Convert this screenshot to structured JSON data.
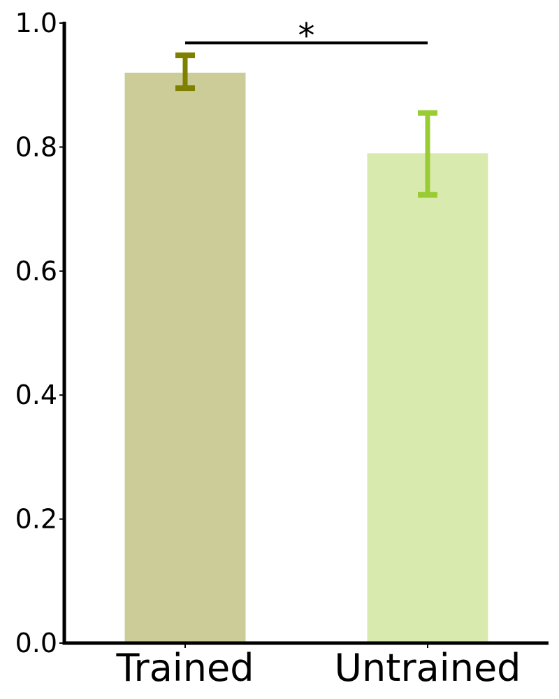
{
  "chart_data": {
    "type": "bar",
    "categories": [
      "Trained",
      "Untrained"
    ],
    "values": [
      0.92,
      0.79
    ],
    "error": [
      [
        0.895,
        0.948
      ],
      [
        0.723,
        0.855
      ]
    ],
    "colors": [
      "#cccc99",
      "#d8eaad"
    ],
    "error_colors": [
      "#808000",
      "#99cc33"
    ],
    "title": "",
    "xlabel": "",
    "ylabel": "",
    "ylim": [
      0,
      1.0
    ],
    "yticks": [
      "0.0",
      "0.2",
      "0.4",
      "0.6",
      "0.8",
      "1.0"
    ],
    "ytick_values": [
      0,
      0.2,
      0.4,
      0.6,
      0.8,
      1.0
    ],
    "grid": false,
    "significance": {
      "between": [
        "Trained",
        "Untrained"
      ],
      "y": 0.968,
      "label": "*"
    }
  }
}
